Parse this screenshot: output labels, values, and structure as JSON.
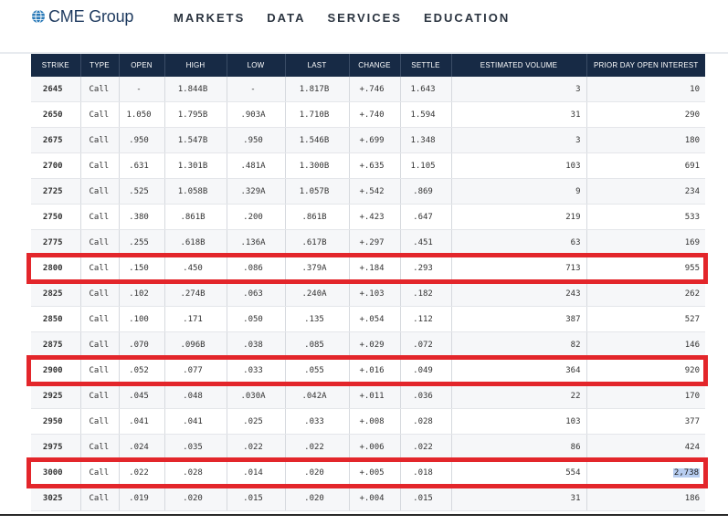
{
  "header": {
    "logo_text": "CME Group",
    "logo_icon": "globe-icon",
    "nav": [
      "MARKETS",
      "DATA",
      "SERVICES",
      "EDUCATION"
    ]
  },
  "table": {
    "columns": [
      "STRIKE",
      "TYPE",
      "OPEN",
      "HIGH",
      "LOW",
      "LAST",
      "CHANGE",
      "SETTLE",
      "ESTIMATED VOLUME",
      "PRIOR DAY OPEN INTEREST"
    ],
    "rows": [
      [
        "2645",
        "Call",
        "-",
        "1.844B",
        "-",
        "1.817B",
        "+.746",
        "1.643",
        "3",
        "10"
      ],
      [
        "2650",
        "Call",
        "1.050",
        "1.795B",
        ".903A",
        "1.710B",
        "+.740",
        "1.594",
        "31",
        "290"
      ],
      [
        "2675",
        "Call",
        ".950",
        "1.547B",
        ".950",
        "1.546B",
        "+.699",
        "1.348",
        "3",
        "180"
      ],
      [
        "2700",
        "Call",
        ".631",
        "1.301B",
        ".481A",
        "1.300B",
        "+.635",
        "1.105",
        "103",
        "691"
      ],
      [
        "2725",
        "Call",
        ".525",
        "1.058B",
        ".329A",
        "1.057B",
        "+.542",
        ".869",
        "9",
        "234"
      ],
      [
        "2750",
        "Call",
        ".380",
        ".861B",
        ".200",
        ".861B",
        "+.423",
        ".647",
        "219",
        "533"
      ],
      [
        "2775",
        "Call",
        ".255",
        ".618B",
        ".136A",
        ".617B",
        "+.297",
        ".451",
        "63",
        "169"
      ],
      [
        "2800",
        "Call",
        ".150",
        ".450",
        ".086",
        ".379A",
        "+.184",
        ".293",
        "713",
        "955"
      ],
      [
        "2825",
        "Call",
        ".102",
        ".274B",
        ".063",
        ".240A",
        "+.103",
        ".182",
        "243",
        "262"
      ],
      [
        "2850",
        "Call",
        ".100",
        ".171",
        ".050",
        ".135",
        "+.054",
        ".112",
        "387",
        "527"
      ],
      [
        "2875",
        "Call",
        ".070",
        ".096B",
        ".038",
        ".085",
        "+.029",
        ".072",
        "82",
        "146"
      ],
      [
        "2900",
        "Call",
        ".052",
        ".077",
        ".033",
        ".055",
        "+.016",
        ".049",
        "364",
        "920"
      ],
      [
        "2925",
        "Call",
        ".045",
        ".048",
        ".030A",
        ".042A",
        "+.011",
        ".036",
        "22",
        "170"
      ],
      [
        "2950",
        "Call",
        ".041",
        ".041",
        ".025",
        ".033",
        "+.008",
        ".028",
        "103",
        "377"
      ],
      [
        "2975",
        "Call",
        ".024",
        ".035",
        ".022",
        ".022",
        "+.006",
        ".022",
        "86",
        "424"
      ],
      [
        "3000",
        "Call",
        ".022",
        ".028",
        ".014",
        ".020",
        "+.005",
        ".018",
        "554",
        "2,738"
      ],
      [
        "3025",
        "Call",
        ".019",
        ".020",
        ".015",
        ".020",
        "+.004",
        ".015",
        "31",
        "186"
      ]
    ],
    "highlighted_strikes": [
      "2800",
      "2900",
      "3000"
    ],
    "selected_value": "2,738",
    "highlight_color": "#e3262b",
    "header_bg": "#172a45"
  }
}
